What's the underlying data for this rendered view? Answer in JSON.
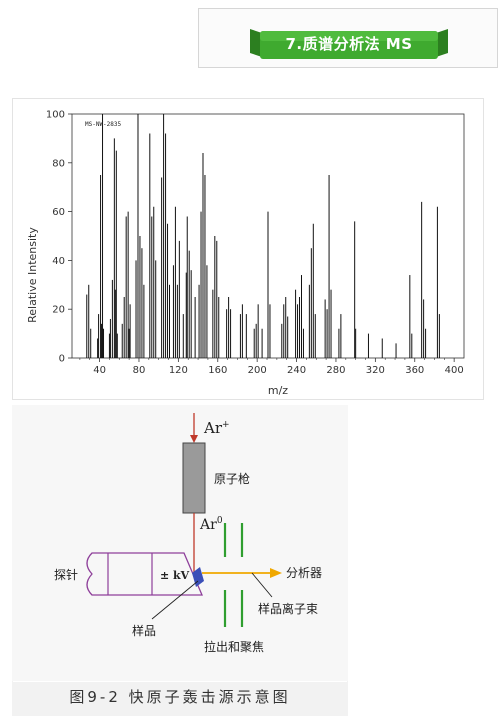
{
  "banner": {
    "title": "7.质谱分析法 MS",
    "color": "#3faa2f"
  },
  "spectrum": {
    "sample_id": "MS-NW-2835"
  },
  "chart_data": {
    "type": "bar",
    "title": "",
    "xlabel": "m/z",
    "ylabel": "Relative Intensity",
    "xlim": [
      12,
      410
    ],
    "ylim": [
      0,
      100
    ],
    "xticks": [
      40,
      80,
      120,
      160,
      200,
      240,
      280,
      320,
      360,
      400
    ],
    "yticks": [
      0,
      20,
      40,
      60,
      80,
      100
    ],
    "grid": false,
    "series": [
      {
        "values": [
          [
            27,
            26
          ],
          [
            29,
            30
          ],
          [
            31,
            12
          ],
          [
            38,
            8
          ],
          [
            39,
            18
          ],
          [
            41,
            75
          ],
          [
            42,
            14
          ],
          [
            43,
            100
          ],
          [
            44,
            12
          ],
          [
            50,
            10
          ],
          [
            51,
            16
          ],
          [
            53,
            32
          ],
          [
            55,
            90
          ],
          [
            56,
            28
          ],
          [
            57,
            85
          ],
          [
            58,
            10
          ],
          [
            63,
            14
          ],
          [
            65,
            25
          ],
          [
            67,
            58
          ],
          [
            69,
            60
          ],
          [
            70,
            12
          ],
          [
            71,
            22
          ],
          [
            77,
            40
          ],
          [
            79,
            100
          ],
          [
            81,
            50
          ],
          [
            83,
            45
          ],
          [
            85,
            30
          ],
          [
            91,
            92
          ],
          [
            93,
            58
          ],
          [
            95,
            62
          ],
          [
            97,
            40
          ],
          [
            103,
            74
          ],
          [
            105,
            100
          ],
          [
            107,
            92
          ],
          [
            109,
            55
          ],
          [
            111,
            30
          ],
          [
            115,
            38
          ],
          [
            117,
            62
          ],
          [
            119,
            30
          ],
          [
            121,
            48
          ],
          [
            125,
            18
          ],
          [
            128,
            35
          ],
          [
            129,
            58
          ],
          [
            131,
            44
          ],
          [
            133,
            36
          ],
          [
            137,
            25
          ],
          [
            141,
            30
          ],
          [
            143,
            60
          ],
          [
            145,
            84
          ],
          [
            147,
            75
          ],
          [
            149,
            38
          ],
          [
            155,
            28
          ],
          [
            157,
            50
          ],
          [
            159,
            48
          ],
          [
            161,
            25
          ],
          [
            169,
            20
          ],
          [
            171,
            25
          ],
          [
            173,
            20
          ],
          [
            183,
            18
          ],
          [
            185,
            22
          ],
          [
            189,
            18
          ],
          [
            197,
            12
          ],
          [
            199,
            14
          ],
          [
            201,
            22
          ],
          [
            205,
            12
          ],
          [
            211,
            60
          ],
          [
            213,
            22
          ],
          [
            225,
            14
          ],
          [
            227,
            22
          ],
          [
            229,
            25
          ],
          [
            231,
            17
          ],
          [
            239,
            28
          ],
          [
            241,
            22
          ],
          [
            243,
            25
          ],
          [
            245,
            34
          ],
          [
            247,
            12
          ],
          [
            253,
            30
          ],
          [
            255,
            45
          ],
          [
            257,
            55
          ],
          [
            259,
            18
          ],
          [
            269,
            24
          ],
          [
            271,
            20
          ],
          [
            273,
            75
          ],
          [
            275,
            28
          ],
          [
            283,
            12
          ],
          [
            285,
            18
          ],
          [
            299,
            56
          ],
          [
            300,
            12
          ],
          [
            313,
            10
          ],
          [
            327,
            8
          ],
          [
            341,
            6
          ],
          [
            355,
            34
          ],
          [
            357,
            10
          ],
          [
            367,
            64
          ],
          [
            369,
            24
          ],
          [
            371,
            12
          ],
          [
            383,
            62
          ],
          [
            385,
            18
          ]
        ]
      }
    ]
  },
  "diagram": {
    "ar_plus": "Ar",
    "ar_plus_sup": "+",
    "gun_label": "原子枪",
    "ar_zero": "Ar",
    "ar_zero_sup": "0",
    "probe_label": "探针",
    "kv_label": "± kV",
    "analyzer_label": "分析器",
    "ion_beam_label": "样品离子束",
    "sample_label": "样品",
    "extract_label": "拉出和聚焦",
    "caption": "图9-2   快原子轰击源示意图",
    "colors": {
      "beam": "#c0392b",
      "probe": "#8e3f9a",
      "lens": "#2f9e2f",
      "ion_arrow": "#f0a800",
      "sample": "#3a4fb8"
    }
  }
}
